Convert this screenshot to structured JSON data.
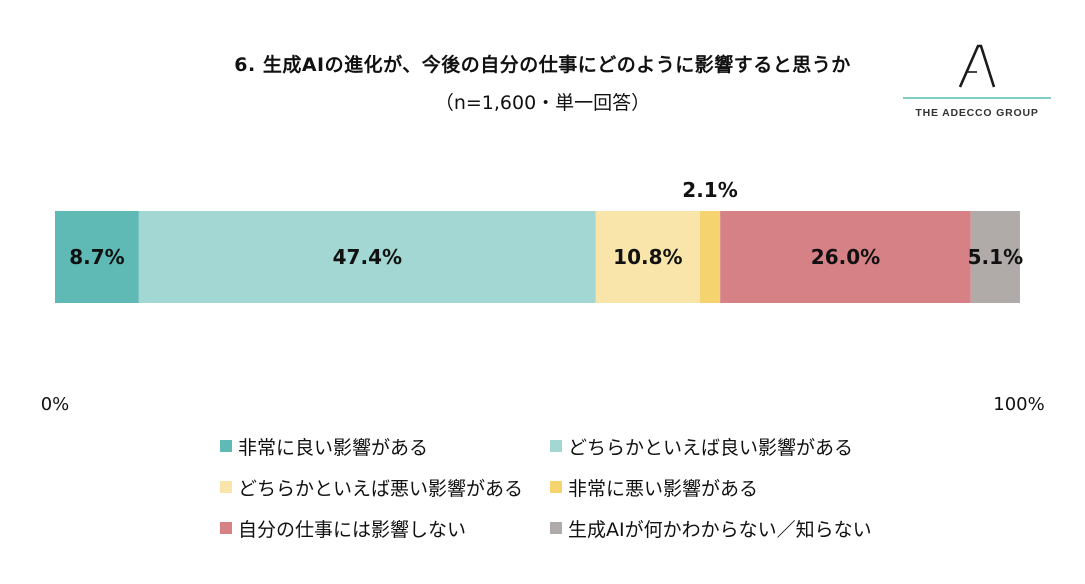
{
  "header": {
    "title": "6. 生成AIの進化が、今後の自分の仕事にどのように影響すると思うか",
    "subtitle": "（n=1,600・単一回答）"
  },
  "logo": {
    "brand_text": "THE ADECCO GROUP",
    "icon": "adecco-a-mark-icon"
  },
  "chart_data": {
    "type": "bar",
    "orientation": "horizontal-stacked-100",
    "xlim": [
      0,
      100
    ],
    "tick_labels": [
      "0%",
      "100%"
    ],
    "segments": [
      {
        "name": "非常に良い影響がある",
        "value": 8.7,
        "label": "8.7%",
        "color": "#5fbab5"
      },
      {
        "name": "どちらかといえば良い影響がある",
        "value": 47.4,
        "label": "47.4%",
        "color": "#a2d7d3"
      },
      {
        "name": "どちらかといえば悪い影響がある",
        "value": 10.8,
        "label": "10.8%",
        "color": "#f9e5aa"
      },
      {
        "name": "非常に悪い影響がある",
        "value": 2.1,
        "label": "2.1%",
        "color": "#f5d470"
      },
      {
        "name": "自分の仕事には影響しない",
        "value": 26.0,
        "label": "26.0%",
        "color": "#d68186"
      },
      {
        "name": "生成AIが何かわからない／知らない",
        "value": 5.1,
        "label": "5.1%",
        "color": "#b0aaa9"
      }
    ],
    "legend_placement": "bottom",
    "grid": false
  }
}
